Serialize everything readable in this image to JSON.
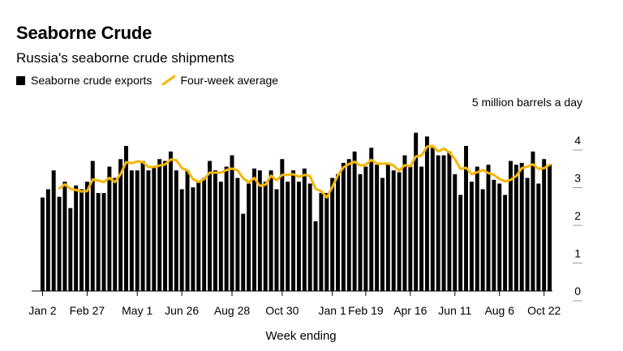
{
  "header": {
    "title": "Seaborne Crude",
    "subtitle": "Russia's seaborne crude shipments"
  },
  "legend": {
    "bars_label": "Seaborne crude exports",
    "line_label": "Four-week average"
  },
  "colors": {
    "bars": "#000000",
    "line": "#f5b60a",
    "axis": "#000000",
    "text": "#000000"
  },
  "chart_data": {
    "type": "bar",
    "title": "Seaborne Crude",
    "subtitle": "Russia's seaborne crude shipments",
    "unit_label": "5 million barrels a day",
    "xlabel": "Week ending",
    "ylabel": "",
    "ylim": [
      0,
      5
    ],
    "yticks": [
      0,
      1,
      2,
      3,
      4
    ],
    "xtick_labels": [
      "Jan 2",
      "Feb 27",
      "May 1",
      "Jun 26",
      "Aug 28",
      "Oct 30",
      "Jan 1",
      "Feb 19",
      "Apr 16",
      "Jun 11",
      "Aug 6",
      "Oct 22"
    ],
    "xtick_index": [
      0,
      8,
      17,
      25,
      34,
      43,
      52,
      58,
      66,
      74,
      82,
      90
    ],
    "grid": false,
    "legend_position": "top-left",
    "series": [
      {
        "name": "Seaborne crude exports",
        "type": "bar",
        "values": [
          2.48,
          2.7,
          3.2,
          2.5,
          2.9,
          2.2,
          2.8,
          2.7,
          2.9,
          3.45,
          2.6,
          2.6,
          3.3,
          3.0,
          3.5,
          3.85,
          3.2,
          3.2,
          3.45,
          3.2,
          3.3,
          3.5,
          3.45,
          3.7,
          3.2,
          2.7,
          3.2,
          2.75,
          2.9,
          3.0,
          3.45,
          3.2,
          2.9,
          3.3,
          3.6,
          3.0,
          2.05,
          2.85,
          3.25,
          3.2,
          2.9,
          3.2,
          2.7,
          3.5,
          2.9,
          3.2,
          2.9,
          3.25,
          2.85,
          1.85,
          2.6,
          2.6,
          3.0,
          3.1,
          3.4,
          3.5,
          3.7,
          3.1,
          3.3,
          3.8,
          3.35,
          3.0,
          3.4,
          3.2,
          3.15,
          3.6,
          3.3,
          4.2,
          3.3,
          4.1,
          3.8,
          3.6,
          3.6,
          3.7,
          3.1,
          2.55,
          3.85,
          2.9,
          3.3,
          2.7,
          3.35,
          2.95,
          2.85,
          2.55,
          3.45,
          3.35,
          3.4,
          3.0,
          3.7,
          2.85,
          3.5,
          3.35
        ]
      },
      {
        "name": "Four-week average",
        "type": "line",
        "values": [
          null,
          null,
          null,
          2.72,
          2.83,
          2.71,
          2.68,
          2.64,
          2.65,
          2.96,
          2.93,
          2.89,
          3.0,
          2.89,
          3.1,
          3.42,
          3.39,
          3.44,
          3.42,
          3.29,
          3.29,
          3.33,
          3.36,
          3.49,
          3.47,
          3.26,
          3.2,
          2.97,
          2.89,
          2.97,
          3.14,
          3.14,
          3.14,
          3.21,
          3.25,
          3.2,
          2.99,
          2.88,
          3.0,
          2.79,
          2.82,
          3.06,
          2.94,
          3.08,
          3.08,
          3.1,
          3.03,
          3.08,
          3.05,
          2.71,
          2.65,
          2.48,
          2.76,
          3.07,
          3.28,
          3.37,
          3.43,
          3.33,
          3.35,
          3.48,
          3.38,
          3.38,
          3.38,
          3.33,
          3.19,
          3.34,
          3.31,
          3.57,
          3.59,
          3.83,
          3.85,
          3.7,
          3.78,
          3.68,
          3.5,
          3.24,
          3.27,
          3.1,
          3.15,
          3.21,
          3.13,
          3.08,
          2.97,
          2.91,
          2.95,
          3.05,
          3.26,
          3.3,
          3.36,
          3.24,
          3.26,
          3.35
        ]
      }
    ]
  }
}
